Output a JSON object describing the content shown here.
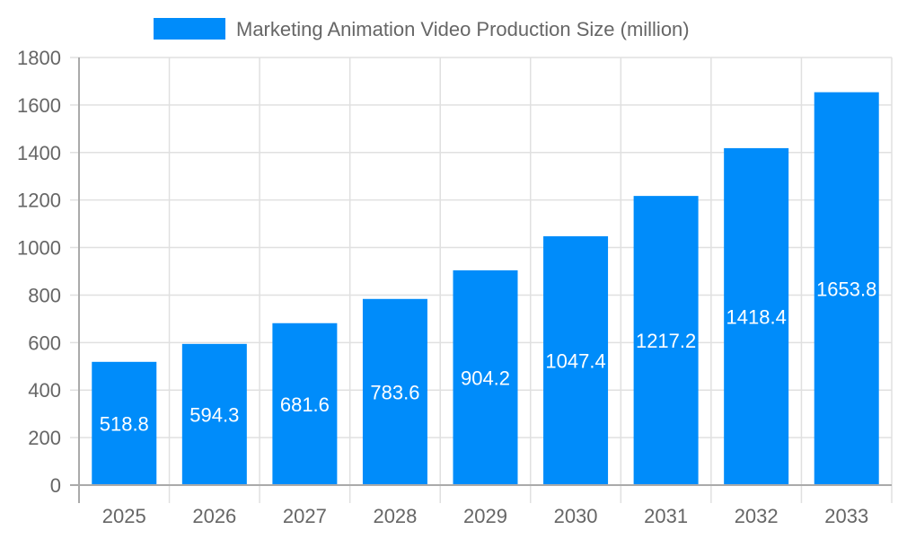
{
  "chart_data": {
    "type": "bar",
    "title": "",
    "xlabel": "",
    "ylabel": "",
    "categories": [
      "2025",
      "2026",
      "2027",
      "2028",
      "2029",
      "2030",
      "2031",
      "2032",
      "2033"
    ],
    "series": [
      {
        "name": "Marketing Animation Video Production Size (million)",
        "values": [
          518.8,
          594.3,
          681.6,
          783.6,
          904.2,
          1047.4,
          1217.2,
          1418.4,
          1653.8
        ],
        "color": "#008cfa"
      }
    ],
    "data_labels": [
      "518.8",
      "594.3",
      "681.6",
      "783.6",
      "904.2",
      "1047.4",
      "1217.2",
      "1418.4",
      "1653.8"
    ],
    "ylim": [
      0,
      1800
    ],
    "yticks": [
      "0",
      "200",
      "400",
      "600",
      "800",
      "1000",
      "1200",
      "1400",
      "1600",
      "1800"
    ],
    "grid": true,
    "legend_position": "top"
  }
}
